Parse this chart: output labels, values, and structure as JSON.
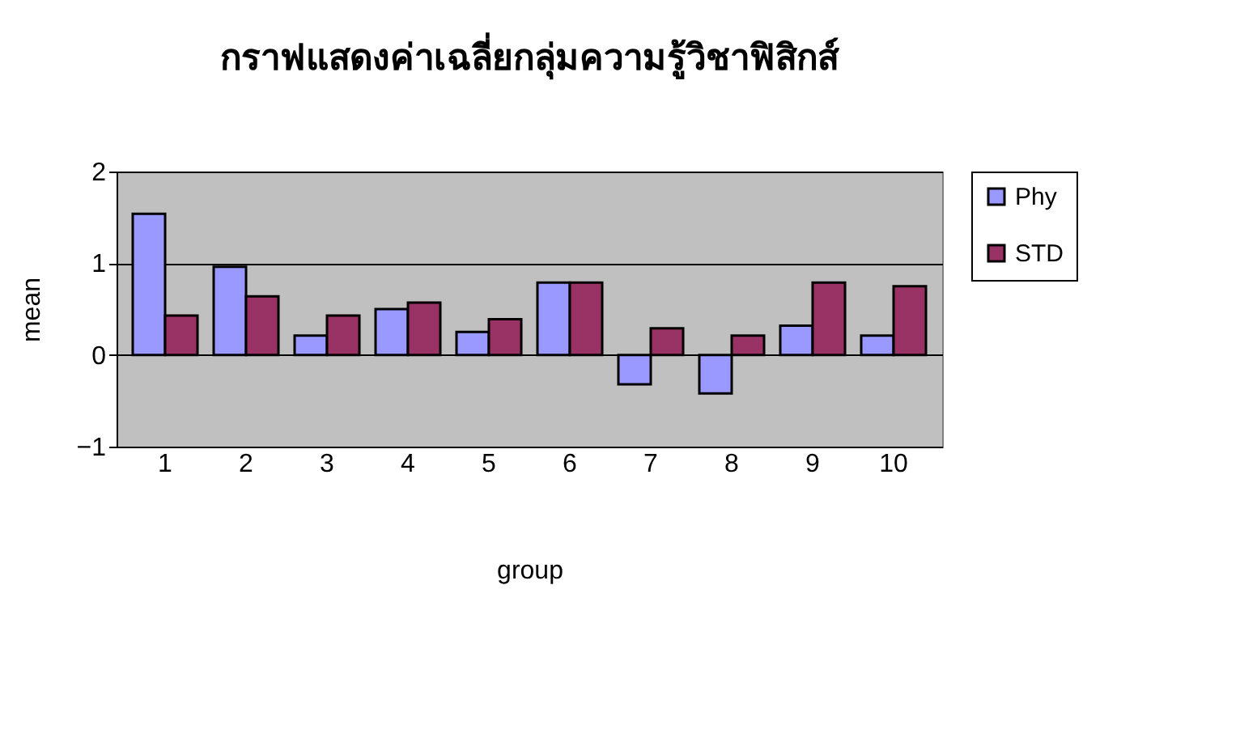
{
  "chart_data": {
    "type": "bar",
    "title": "กราฟแสดงค่าเฉลี่ยกลุ่มความรู้วิชาฟิสิกส์",
    "xlabel": "group",
    "ylabel": "mean",
    "categories": [
      "1",
      "2",
      "3",
      "4",
      "5",
      "6",
      "7",
      "8",
      "9",
      "10"
    ],
    "series": [
      {
        "name": "Phy",
        "color": "#9999ff",
        "values": [
          1.54,
          0.96,
          0.21,
          0.5,
          0.25,
          0.79,
          -0.32,
          -0.42,
          0.32,
          0.21
        ]
      },
      {
        "name": "STD",
        "color": "#993366",
        "values": [
          0.43,
          0.64,
          0.43,
          0.57,
          0.39,
          0.79,
          0.29,
          0.21,
          0.79,
          0.75
        ]
      }
    ],
    "ylim": [
      -1,
      2
    ],
    "yticks": [
      -1,
      0,
      1,
      2
    ],
    "grid": "y",
    "legend": "right"
  }
}
